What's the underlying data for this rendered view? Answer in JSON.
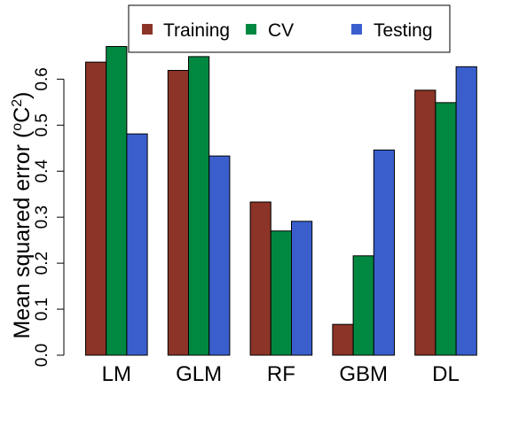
{
  "chart_data": {
    "type": "bar",
    "categories": [
      "LM",
      "GLM",
      "RF",
      "GBM",
      "DL"
    ],
    "series": [
      {
        "name": "Training",
        "color": "#8B3427",
        "values": [
          0.637,
          0.619,
          0.333,
          0.067,
          0.576
        ]
      },
      {
        "name": "CV",
        "color": "#008841",
        "values": [
          0.671,
          0.649,
          0.27,
          0.216,
          0.549
        ]
      },
      {
        "name": "Testing",
        "color": "#3A5FCD",
        "values": [
          0.481,
          0.433,
          0.291,
          0.446,
          0.627
        ]
      }
    ],
    "ylabel": "Mean squared error (",
    "ylabel_sup1": "o",
    "ylabel_unit": "C",
    "ylabel_sup2": "2",
    "ylabel_end": ")",
    "ylim": [
      0,
      0.67
    ],
    "yticks": [
      "0.0",
      "0.1",
      "0.2",
      "0.3",
      "0.4",
      "0.5",
      "0.6"
    ],
    "ytick_values": [
      0,
      0.1,
      0.2,
      0.3,
      0.4,
      0.5,
      0.6
    ],
    "grid": false,
    "legend_position": "top-center"
  }
}
